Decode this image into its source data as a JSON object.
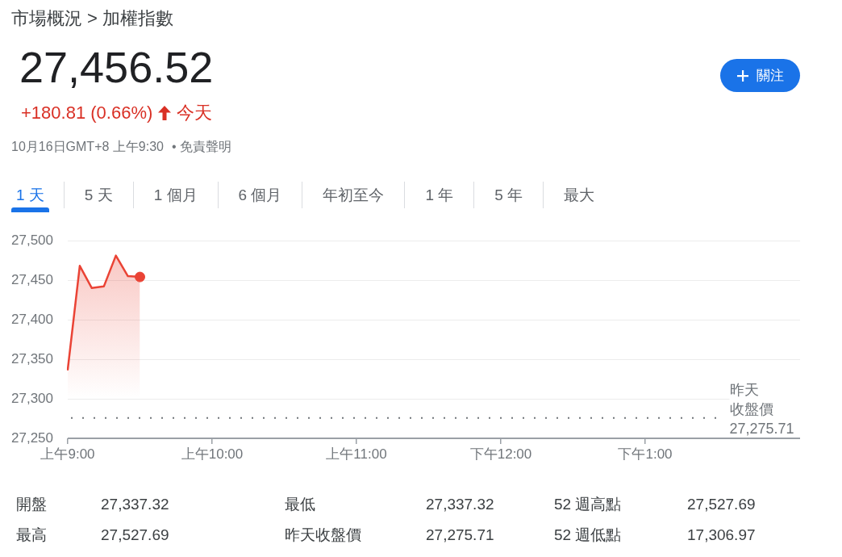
{
  "chart_data": {
    "type": "area",
    "title": "市場概況 > 加權指數",
    "categories": [
      "上午9:00",
      null,
      null,
      null,
      null,
      null,
      null,
      null,
      null,
      null,
      null,
      null,
      "上午10:00",
      null,
      null,
      null,
      null,
      null,
      null,
      null,
      null,
      null,
      null,
      null,
      "上午11:00",
      null,
      null,
      null,
      null,
      null,
      null,
      null,
      null,
      null,
      null,
      null,
      "下午12:00",
      null,
      null,
      null,
      null,
      null,
      null,
      null,
      null,
      null,
      null,
      null,
      "下午1:00",
      null,
      null,
      null,
      null,
      null,
      null
    ],
    "series": [
      {
        "color": "#ea4335",
        "values": [
          27337,
          27468,
          27440,
          27442,
          27481,
          27455,
          27454,
          null,
          null,
          null,
          null,
          null,
          null,
          null,
          null,
          null,
          null,
          null,
          null,
          null,
          null,
          null,
          null,
          null,
          null,
          null,
          null,
          null,
          null,
          null,
          null,
          null,
          null,
          null,
          null,
          null,
          null,
          null,
          null,
          null,
          null,
          null,
          null,
          null,
          null,
          null,
          null,
          null,
          null,
          null,
          null,
          null,
          null,
          null,
          null
        ]
      },
      {
        "type": "scatter",
        "marker": "circle",
        "color": "#ea4335",
        "values": [
          null,
          null,
          null,
          null,
          null,
          null,
          27454,
          null,
          null,
          null,
          null,
          null,
          null,
          null,
          null,
          null,
          null,
          null,
          null,
          null,
          null,
          null,
          null,
          null,
          null,
          null,
          null,
          null,
          null,
          null,
          null,
          null,
          null,
          null,
          null,
          null,
          null,
          null,
          null,
          null,
          null,
          null,
          null,
          null,
          null,
          null,
          null,
          null,
          null,
          null,
          null,
          null,
          null,
          null,
          null
        ]
      }
    ],
    "ylim": [
      27250,
      27500
    ],
    "yticks": [
      {
        "value": 27250,
        "label": "27,250"
      },
      {
        "value": 27300,
        "label": "27,300"
      },
      {
        "value": 27350,
        "label": "27,350"
      },
      {
        "value": 27400,
        "label": "27,400"
      },
      {
        "value": 27450,
        "label": "27,450"
      },
      {
        "value": 27500,
        "label": "27,500"
      }
    ],
    "grid": "y",
    "marker": "none",
    "ref_lines": [
      {
        "axis": "y",
        "value": 27275.71,
        "label": "昨天收盤價 27,275.71",
        "color": "#70757a",
        "line_style": "dotted"
      }
    ],
    "annotations": [
      "27,456.52",
      "+180.81 (0.66%)",
      "今天",
      "10月16日GMT+8 上午9:30",
      "• 免責聲明",
      "關注",
      "1 天",
      "5 天",
      "1 個月",
      "6 個月",
      "年初至今",
      "1 年",
      "5 年",
      "最大",
      "開盤",
      "27,337.32",
      "最低",
      "27,337.32",
      "52 週高點",
      "27,527.69",
      "最高",
      "27,527.69",
      "昨天收盤價",
      "27,275.71",
      "52 週低點",
      "17,306.97"
    ]
  }
}
